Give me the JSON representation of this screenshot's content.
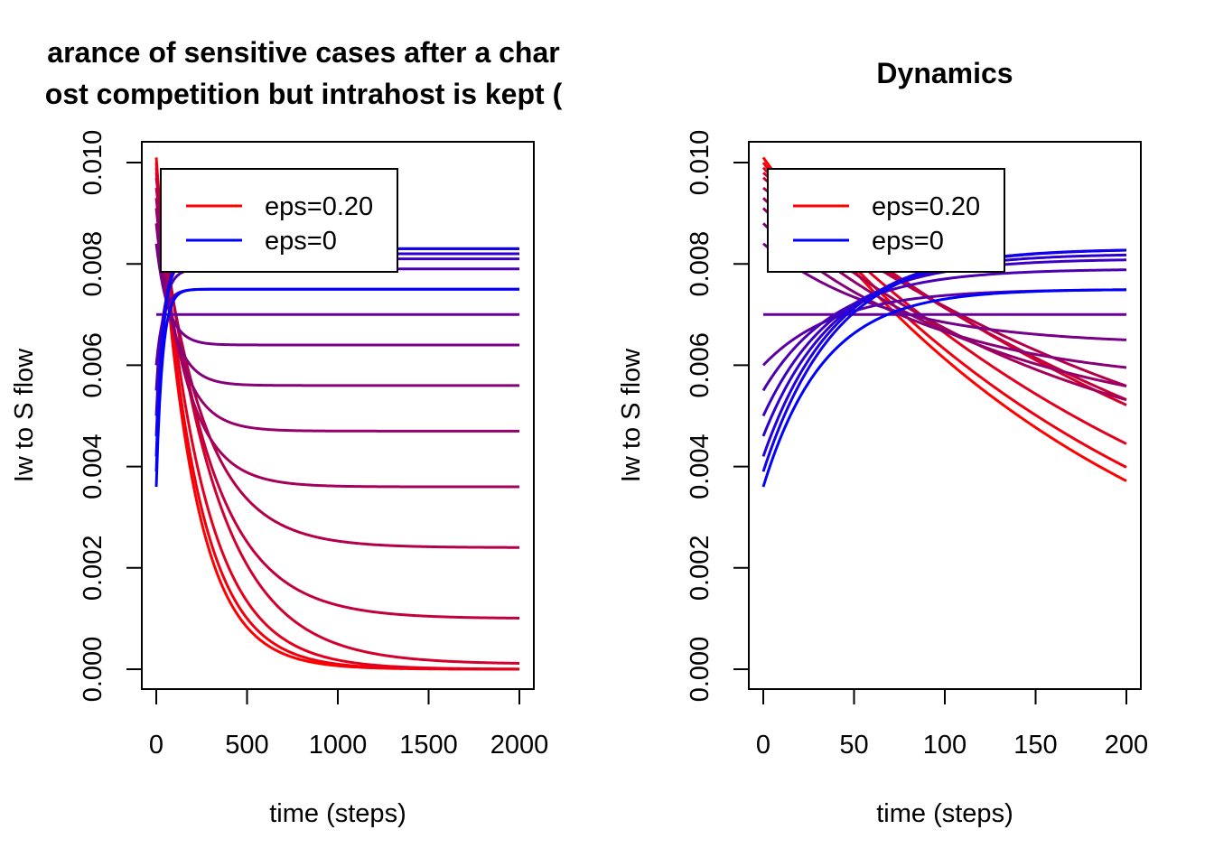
{
  "chart_data": [
    {
      "type": "line",
      "title_lines": [
        "arance of sensitive cases after a char",
        "ost competition but intrahost is kept ("
      ],
      "xlabel": "time (steps)",
      "ylabel": "Iw to S flow",
      "xlim": [
        -80,
        2080
      ],
      "ylim": [
        -0.0004,
        0.0104
      ],
      "x_ticks": [
        0,
        500,
        1000,
        1500,
        2000
      ],
      "x_tick_labels": [
        "0",
        "500",
        "1000",
        "1500",
        "2000"
      ],
      "y_ticks": [
        0.0,
        0.002,
        0.004,
        0.006,
        0.008,
        0.01
      ],
      "y_tick_labels": [
        "0.000",
        "0.002",
        "0.004",
        "0.006",
        "0.008",
        "0.010"
      ],
      "legend": {
        "position": "top-left",
        "entries": [
          {
            "label": "eps=0.20",
            "color": "#ff0000"
          },
          {
            "label": "eps=0",
            "color": "#0000ff"
          }
        ]
      },
      "grid": false,
      "series_model": {
        "form": "exponential_relaxation",
        "t_max": 2000,
        "color_from": "#ff0000",
        "color_to": "#0000ff"
      },
      "series": [
        {
          "start": 0.0101,
          "end": 0.0,
          "rate": 0.005
        },
        {
          "start": 0.01,
          "end": 0.0,
          "rate": 0.0046
        },
        {
          "start": 0.0099,
          "end": 0.0,
          "rate": 0.004
        },
        {
          "start": 0.0098,
          "end": 0.0001,
          "rate": 0.0032
        },
        {
          "start": 0.0097,
          "end": 0.001,
          "rate": 0.0035
        },
        {
          "start": 0.0095,
          "end": 0.0024,
          "rate": 0.004
        },
        {
          "start": 0.0093,
          "end": 0.0036,
          "rate": 0.006
        },
        {
          "start": 0.0091,
          "end": 0.0047,
          "rate": 0.008
        },
        {
          "start": 0.0088,
          "end": 0.0056,
          "rate": 0.011
        },
        {
          "start": 0.0084,
          "end": 0.0064,
          "rate": 0.015
        },
        {
          "start": 0.007,
          "end": 0.007,
          "rate": 0.02
        },
        {
          "start": 0.006,
          "end": 0.0075,
          "rate": 0.025
        },
        {
          "start": 0.0055,
          "end": 0.0079,
          "rate": 0.025
        },
        {
          "start": 0.005,
          "end": 0.0081,
          "rate": 0.025
        },
        {
          "start": 0.0046,
          "end": 0.0082,
          "rate": 0.025
        },
        {
          "start": 0.0042,
          "end": 0.0083,
          "rate": 0.025
        },
        {
          "start": 0.0039,
          "end": 0.0083,
          "rate": 0.025
        },
        {
          "start": 0.0036,
          "end": 0.0075,
          "rate": 0.03
        }
      ]
    },
    {
      "type": "line",
      "title": "Dynamics",
      "xlabel": "time (steps)",
      "ylabel": "Iw to S flow",
      "xlim": [
        -8,
        208
      ],
      "ylim": [
        -0.0004,
        0.0104
      ],
      "x_ticks": [
        0,
        50,
        100,
        150,
        200
      ],
      "x_tick_labels": [
        "0",
        "50",
        "100",
        "150",
        "200"
      ],
      "y_ticks": [
        0.0,
        0.002,
        0.004,
        0.006,
        0.008,
        0.01
      ],
      "y_tick_labels": [
        "0.000",
        "0.002",
        "0.004",
        "0.006",
        "0.008",
        "0.010"
      ],
      "legend": {
        "position": "top-left",
        "entries": [
          {
            "label": "eps=0.20",
            "color": "#ff0000"
          },
          {
            "label": "eps=0",
            "color": "#0000ff"
          }
        ]
      },
      "grid": false,
      "series_model": {
        "form": "exponential_relaxation",
        "t_max": 200,
        "color_from": "#ff0000",
        "color_to": "#0000ff"
      },
      "series": [
        {
          "start": 0.0101,
          "end": 0.0,
          "rate": 0.005
        },
        {
          "start": 0.01,
          "end": 0.0,
          "rate": 0.0046
        },
        {
          "start": 0.0099,
          "end": 0.0,
          "rate": 0.004
        },
        {
          "start": 0.0098,
          "end": 0.0001,
          "rate": 0.0032
        },
        {
          "start": 0.0097,
          "end": 0.001,
          "rate": 0.0035
        },
        {
          "start": 0.0095,
          "end": 0.0024,
          "rate": 0.004
        },
        {
          "start": 0.0093,
          "end": 0.0036,
          "rate": 0.006
        },
        {
          "start": 0.0091,
          "end": 0.0047,
          "rate": 0.008
        },
        {
          "start": 0.0088,
          "end": 0.0056,
          "rate": 0.011
        },
        {
          "start": 0.0084,
          "end": 0.0064,
          "rate": 0.015
        },
        {
          "start": 0.007,
          "end": 0.007,
          "rate": 0.02
        },
        {
          "start": 0.006,
          "end": 0.0075,
          "rate": 0.025
        },
        {
          "start": 0.0055,
          "end": 0.0079,
          "rate": 0.025
        },
        {
          "start": 0.005,
          "end": 0.0081,
          "rate": 0.025
        },
        {
          "start": 0.0046,
          "end": 0.0082,
          "rate": 0.025
        },
        {
          "start": 0.0042,
          "end": 0.0083,
          "rate": 0.025
        },
        {
          "start": 0.0039,
          "end": 0.0083,
          "rate": 0.025
        },
        {
          "start": 0.0036,
          "end": 0.0075,
          "rate": 0.03
        }
      ]
    }
  ]
}
